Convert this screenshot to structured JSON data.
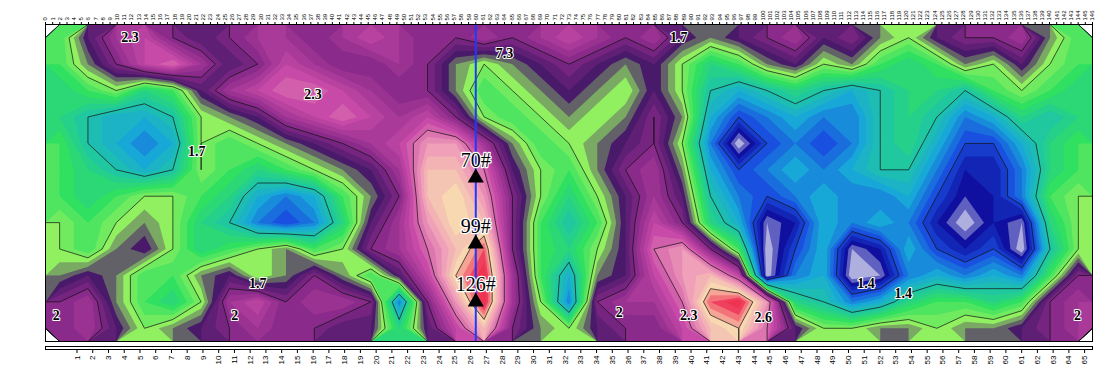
{
  "chart_data": {
    "type": "contour",
    "xlim": [
      0,
      146
    ],
    "xticks": [
      0,
      1,
      2,
      3,
      4,
      5,
      6,
      7,
      8,
      9,
      10,
      11,
      12,
      13,
      14,
      15,
      16,
      17,
      18,
      19,
      20,
      21,
      22,
      23,
      24,
      25,
      26,
      27,
      28,
      29,
      30,
      31,
      32,
      33,
      34,
      35,
      36,
      37,
      38,
      39,
      40,
      41,
      42,
      43,
      44,
      45,
      46,
      47,
      48,
      49,
      50,
      51,
      52,
      53,
      54,
      55,
      56,
      57,
      58,
      59,
      60,
      61,
      62,
      63,
      64,
      65,
      66,
      67,
      68,
      69,
      70,
      71,
      72,
      73,
      74,
      75,
      76,
      77,
      78,
      79,
      80,
      81,
      82,
      83,
      84,
      85,
      86,
      87,
      88,
      89,
      90,
      91,
      92,
      93,
      94,
      95,
      96,
      97,
      98,
      99,
      100,
      101,
      102,
      103,
      104,
      105,
      106,
      107,
      108,
      109,
      110,
      111,
      112,
      113,
      114,
      115,
      116,
      117,
      118,
      119,
      120,
      121,
      122,
      123,
      124,
      125,
      126,
      127,
      128,
      129,
      130,
      131,
      132,
      133,
      134,
      135,
      136,
      137,
      138,
      139,
      140,
      141,
      142,
      143,
      144,
      145,
      146
    ],
    "x2lim": [
      -1,
      65.5
    ],
    "x2ticks": [
      1,
      2,
      3,
      4,
      5,
      6,
      7,
      8,
      9,
      10,
      11,
      12,
      13,
      14,
      15,
      16,
      17,
      18,
      19,
      20,
      21,
      22,
      23,
      24,
      25,
      26,
      27,
      28,
      29,
      30,
      31,
      32,
      33,
      34,
      35,
      36,
      37,
      38,
      39,
      40,
      41,
      42,
      43,
      44,
      45,
      46,
      47,
      48,
      49,
      50,
      51,
      52,
      53,
      54,
      55,
      56,
      57,
      58,
      59,
      60,
      61,
      62,
      63,
      64,
      65
    ],
    "cells": [
      [
        1.6,
        1.9,
        2.1,
        2.2,
        2.0,
        1.9,
        2.0,
        2.1,
        2.1,
        2.0,
        2.1,
        2.2,
        2.1,
        2.0,
        2.0,
        2.1,
        2.0,
        2.1,
        2.2,
        2.1,
        2.0,
        2.1,
        1.9,
        1.8,
        1.9,
        2.0,
        2.1,
        1.9,
        2.0,
        1.8,
        1.7,
        1.9,
        2.0,
        2.0,
        2.1,
        1.8,
        1.6
      ],
      [
        1.6,
        1.8,
        2.0,
        2.2,
        2.3,
        2.1,
        1.9,
        2.0,
        2.2,
        2.1,
        2.0,
        2.0,
        2.1,
        2.0,
        1.8,
        1.7,
        1.8,
        1.9,
        2.0,
        1.9,
        1.8,
        1.9,
        1.7,
        1.5,
        1.6,
        1.8,
        1.9,
        1.7,
        1.8,
        1.6,
        1.5,
        1.6,
        1.8,
        1.7,
        1.9,
        1.7,
        1.6
      ],
      [
        1.5,
        1.6,
        1.7,
        1.5,
        1.6,
        1.9,
        2.1,
        2.2,
        2.3,
        2.3,
        2.2,
        2.1,
        2.0,
        2.0,
        1.8,
        1.6,
        1.7,
        1.8,
        1.9,
        1.8,
        1.7,
        1.9,
        1.7,
        1.4,
        1.3,
        1.4,
        1.5,
        1.4,
        1.3,
        1.4,
        1.5,
        1.5,
        1.4,
        1.6,
        1.7,
        1.6,
        1.5
      ],
      [
        1.5,
        1.4,
        1.3,
        1.3,
        1.4,
        1.7,
        1.8,
        1.9,
        2.1,
        2.2,
        2.3,
        2.2,
        2.1,
        2.2,
        2.0,
        1.7,
        1.6,
        1.7,
        1.8,
        1.7,
        1.8,
        2.0,
        1.8,
        1.3,
        1.1,
        1.2,
        1.3,
        1.2,
        1.2,
        1.4,
        1.5,
        1.4,
        1.2,
        1.3,
        1.5,
        1.4,
        1.5
      ],
      [
        1.6,
        1.4,
        1.3,
        1.2,
        1.3,
        1.7,
        1.6,
        1.7,
        1.8,
        1.9,
        2.0,
        2.1,
        2.2,
        2.4,
        2.4,
        2.1,
        1.8,
        1.6,
        1.7,
        1.8,
        1.9,
        2.0,
        1.7,
        1.2,
        0.85,
        1.1,
        1.2,
        1.1,
        1.2,
        1.4,
        1.5,
        1.3,
        1.1,
        1.1,
        1.3,
        1.5,
        1.6
      ],
      [
        1.6,
        1.5,
        1.4,
        1.3,
        1.4,
        1.7,
        1.6,
        1.5,
        1.6,
        1.7,
        1.8,
        1.9,
        2.1,
        2.5,
        2.5,
        2.3,
        1.9,
        1.7,
        1.6,
        1.8,
        2.0,
        2.1,
        1.8,
        1.3,
        1.1,
        1.2,
        1.3,
        1.2,
        1.3,
        1.4,
        1.4,
        1.2,
        1.0,
        1.0,
        1.2,
        1.5,
        1.6
      ],
      [
        1.6,
        1.5,
        1.6,
        1.7,
        1.7,
        1.6,
        1.5,
        1.3,
        1.2,
        1.3,
        1.6,
        1.8,
        2.0,
        2.5,
        2.6,
        2.4,
        2.0,
        1.7,
        1.5,
        1.7,
        1.9,
        2.1,
        1.9,
        1.4,
        1.2,
        1.1,
        1.2,
        1.3,
        1.2,
        1.2,
        1.3,
        1.1,
        0.95,
        1.0,
        1.2,
        1.6,
        1.7
      ],
      [
        1.7,
        1.6,
        1.7,
        1.8,
        1.7,
        1.5,
        1.4,
        1.2,
        1.1,
        1.2,
        1.5,
        1.9,
        2.1,
        2.4,
        2.6,
        2.5,
        2.0,
        1.6,
        1.4,
        1.6,
        1.9,
        2.2,
        2.0,
        1.5,
        1.3,
        0.9,
        1.0,
        1.3,
        1.2,
        1.3,
        1.2,
        1.0,
        0.85,
        1.0,
        0.9,
        1.5,
        1.7
      ],
      [
        1.7,
        1.6,
        1.8,
        1.9,
        1.7,
        1.5,
        1.6,
        1.7,
        1.8,
        1.6,
        1.7,
        2.0,
        2.1,
        2.3,
        2.5,
        2.7,
        2.0,
        1.6,
        1.5,
        1.7,
        1.9,
        2.3,
        2.4,
        2.0,
        1.6,
        0.85,
        1.1,
        1.3,
        0.9,
        1.0,
        1.3,
        1.1,
        1.0,
        1.1,
        0.85,
        1.4,
        1.7
      ],
      [
        1.8,
        1.9,
        1.8,
        1.6,
        1.6,
        1.8,
        1.9,
        1.7,
        1.8,
        2.0,
        1.8,
        1.6,
        1.9,
        2.2,
        2.6,
        2.8,
        2.1,
        1.6,
        1.3,
        1.8,
        1.9,
        2.2,
        2.4,
        2.5,
        2.2,
        0.85,
        1.2,
        1.3,
        0.85,
        0.9,
        1.2,
        1.3,
        1.2,
        1.3,
        1.2,
        1.6,
        2.0
      ],
      [
        2.0,
        2.1,
        1.8,
        1.6,
        1.5,
        1.7,
        2.1,
        2.2,
        2.0,
        2.1,
        2.1,
        2.0,
        1.2,
        2.0,
        2.4,
        2.8,
        2.1,
        1.7,
        1.2,
        2.0,
        2.1,
        2.1,
        2.3,
        2.7,
        2.8,
        2.4,
        1.5,
        1.4,
        1.2,
        1.3,
        1.5,
        1.6,
        1.6,
        1.5,
        1.6,
        2.0,
        2.1
      ],
      [
        2.0,
        2.1,
        1.9,
        1.7,
        1.8,
        1.9,
        2.0,
        2.1,
        2.0,
        2.0,
        1.9,
        1.9,
        1.5,
        1.9,
        2.2,
        2.5,
        2.0,
        1.8,
        1.7,
        1.9,
        2.0,
        2.0,
        2.2,
        2.5,
        2.6,
        2.3,
        1.9,
        1.7,
        1.7,
        1.8,
        1.8,
        1.7,
        1.8,
        1.8,
        1.9,
        2.0,
        2.1
      ]
    ],
    "contour_levels": [
      1.1,
      1.4,
      1.7,
      2,
      2.3,
      2.6
    ],
    "color_stops": [
      {
        "value": 0.8,
        "color": "#ffffff"
      },
      {
        "value": 0.95,
        "color": "#1010a0"
      },
      {
        "value": 1.1,
        "color": "#1a50e0"
      },
      {
        "value": 1.25,
        "color": "#18a8d8"
      },
      {
        "value": 1.4,
        "color": "#20c8a0"
      },
      {
        "value": 1.55,
        "color": "#30e060"
      },
      {
        "value": 1.7,
        "color": "#90f060"
      },
      {
        "value": 1.85,
        "color": "#4a1a6a"
      },
      {
        "value": 2.0,
        "color": "#8a2a8a"
      },
      {
        "value": 2.2,
        "color": "#c84aa8"
      },
      {
        "value": 2.4,
        "color": "#f0a0b8"
      },
      {
        "value": 2.55,
        "color": "#f8d8b0"
      },
      {
        "value": 2.7,
        "color": "#f04060"
      },
      {
        "value": 2.9,
        "color": "#e81020"
      }
    ],
    "annotations": [
      {
        "text": "7.3",
        "x": 64,
        "y": 1.1
      },
      {
        "text": "2.3",
        "x": 11.8,
        "y": 0.5
      },
      {
        "text": "2.3",
        "x": 37.3,
        "y": 2.66
      },
      {
        "text": "1.7",
        "x": 21.1,
        "y": 4.8
      },
      {
        "text": "1.7",
        "x": 29.6,
        "y": 9.8
      },
      {
        "text": "2",
        "x": 26.4,
        "y": 11.0
      },
      {
        "text": "2",
        "x": 1.5,
        "y": 11.0
      },
      {
        "text": "2",
        "x": 80,
        "y": 10.9
      },
      {
        "text": "2.3",
        "x": 89.7,
        "y": 11.0
      },
      {
        "text": "2.6",
        "x": 100.1,
        "y": 11.1
      },
      {
        "text": "1.4",
        "x": 114.4,
        "y": 9.8
      },
      {
        "text": "1.4",
        "x": 119.6,
        "y": 10.2
      },
      {
        "text": "1.7",
        "x": 88.3,
        "y": 0.5
      },
      {
        "text": "2",
        "x": 143.9,
        "y": 11.0
      }
    ],
    "boreholes": [
      {
        "label": "70#",
        "x": 60,
        "y": 5.8
      },
      {
        "label": "99#",
        "x": 60,
        "y": 8.3
      },
      {
        "label": "126#",
        "x": 60,
        "y": 10.5
      }
    ],
    "marker": "triangle",
    "line": {
      "x": 60,
      "color": "#1a3cff"
    }
  }
}
